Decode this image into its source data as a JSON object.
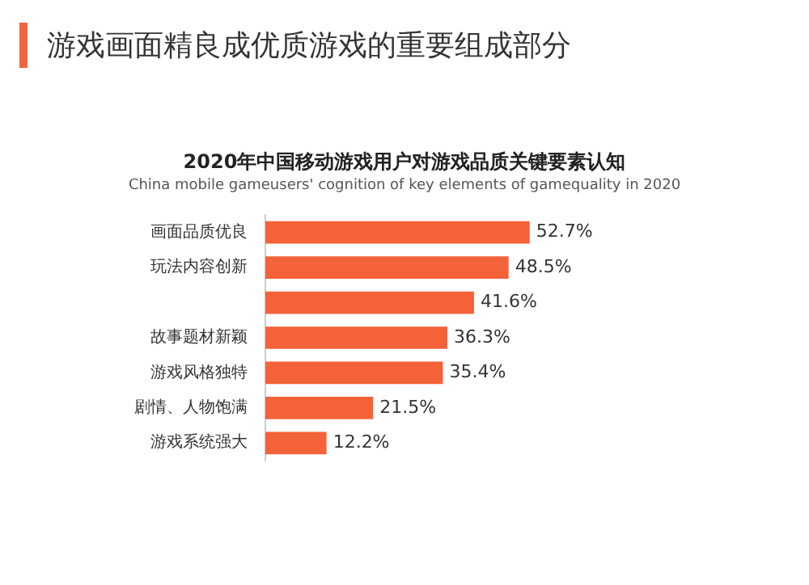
{
  "chart_data": {
    "type": "bar",
    "orientation": "horizontal",
    "title": "游戏画面精良成优质游戏的重要组成部分",
    "subtitle": "2020年中国移动游戏用户对游戏品质关键要素认知",
    "annotations": [
      "China mobile gameusers' cognition of key elements of gamequality in 2020"
    ],
    "categories": [
      "画面品质优良",
      "玩法内容创新",
      null,
      "故事题材新颖",
      "游戏风格独特",
      "剧情、人物饱满",
      "游戏系统强大"
    ],
    "values": [
      52.7,
      48.5,
      41.6,
      36.3,
      35.4,
      21.5,
      12.2
    ],
    "value_labels": [
      "52.7%",
      "48.5%",
      "41.6%",
      "36.3%",
      "35.4%",
      "21.5%",
      "12.2%"
    ],
    "color": "#f4623a",
    "tick_labels": "y"
  }
}
